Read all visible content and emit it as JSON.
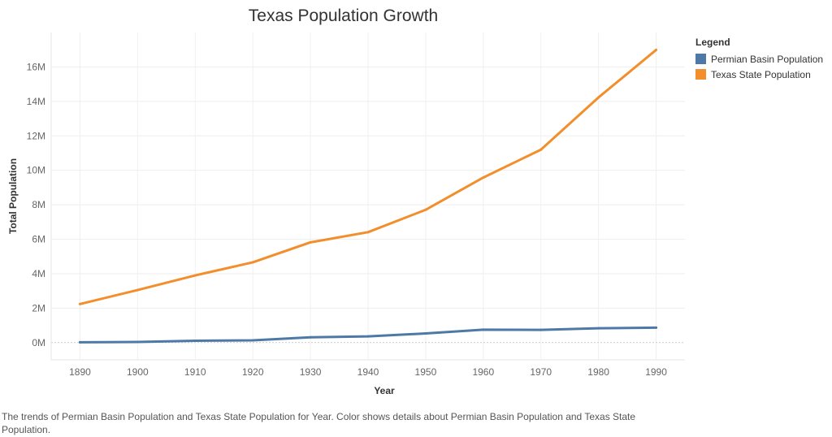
{
  "chart_data": {
    "type": "line",
    "title": "Texas Population Growth",
    "xlabel": "Year",
    "ylabel": "Total Population",
    "x": [
      1890,
      1900,
      1910,
      1920,
      1930,
      1940,
      1950,
      1960,
      1970,
      1980,
      1990
    ],
    "x_tick_labels": [
      "1890",
      "1900",
      "1910",
      "1920",
      "1930",
      "1940",
      "1950",
      "1960",
      "1970",
      "1980",
      "1990"
    ],
    "y_ticks": [
      0,
      2000000,
      4000000,
      6000000,
      8000000,
      10000000,
      12000000,
      14000000,
      16000000
    ],
    "y_tick_labels": [
      "0M",
      "2M",
      "4M",
      "6M",
      "8M",
      "10M",
      "12M",
      "14M",
      "16M"
    ],
    "ylim": [
      -1000000,
      18000000
    ],
    "grid": true,
    "legend_title": "Legend",
    "legend_position": "right",
    "series": [
      {
        "name": "Permian Basin Population",
        "color": "#4e79a7",
        "values": [
          20000,
          40000,
          110000,
          130000,
          310000,
          360000,
          530000,
          750000,
          740000,
          830000,
          870000
        ]
      },
      {
        "name": "Texas State Population",
        "color": "#f28e2b",
        "values": [
          2240000,
          3050000,
          3900000,
          4660000,
          5820000,
          6410000,
          7710000,
          9580000,
          11200000,
          14230000,
          16990000
        ]
      }
    ]
  },
  "caption": "The trends of Permian Basin Population and Texas State Population for Year.  Color shows details about Permian Basin Population and Texas State Population."
}
